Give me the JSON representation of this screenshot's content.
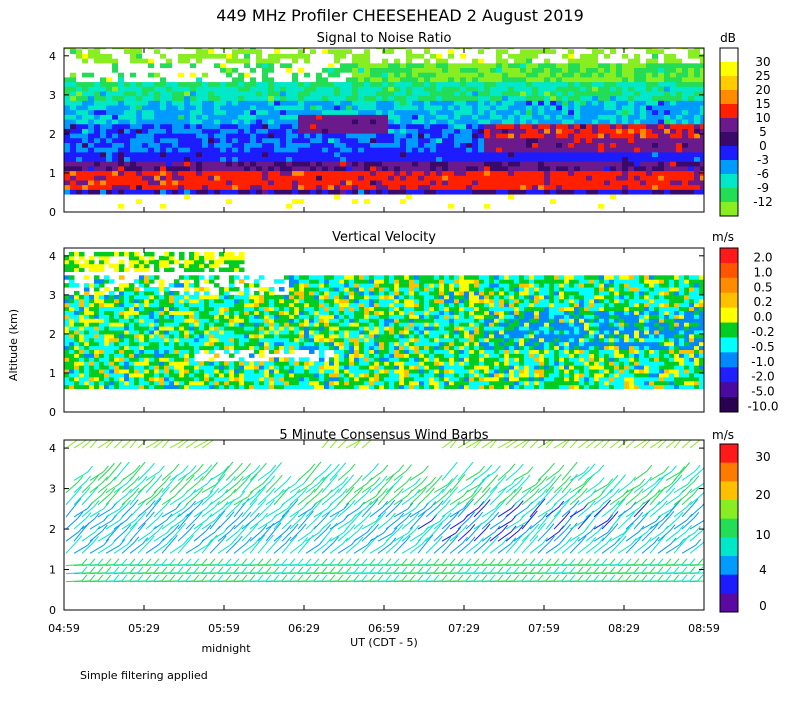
{
  "figure": {
    "title": "449 MHz Profiler CHEESEHEAD  2 August 2019",
    "ylabel": "Altitude (km)",
    "xlabel": "UT  (CDT - 5)",
    "midnight_label": "midnight",
    "footnote": "Simple filtering applied",
    "x_ticks": [
      "04:59",
      "05:29",
      "05:59",
      "06:29",
      "06:59",
      "07:29",
      "07:59",
      "08:29",
      "08:59"
    ],
    "y_ticks": [
      "0",
      "1",
      "2",
      "3",
      "4"
    ]
  },
  "chart_data": [
    {
      "type": "heatmap",
      "title": "Signal to Noise Ratio",
      "unit": "dB",
      "x_range": [
        "04:59",
        "08:59"
      ],
      "ylim": [
        0,
        4.2
      ],
      "colorbar_labels": [
        "30",
        "25",
        "20",
        "15",
        "10",
        "5",
        "0",
        "-3",
        "-6",
        "-9",
        "-12"
      ],
      "colorbar_colors": [
        "#ffffff",
        "#ffff00",
        "#ffcc00",
        "#ff8c00",
        "#ff2000",
        "#6a1a8a",
        "#3a0a6a",
        "#1c1cff",
        "#009bff",
        "#00e8c8",
        "#22dd55",
        "#88ee22"
      ],
      "bands": [
        {
          "altitude_km": 0.25,
          "level": "0"
        },
        {
          "altitude_km": 0.75,
          "level": "10"
        },
        {
          "altitude_km": 1.05,
          "level": "5"
        },
        {
          "altitude_km": 1.4,
          "level": "-3"
        },
        {
          "altitude_km": 1.9,
          "level": "-3"
        },
        {
          "altitude_km": 2.1,
          "level": "10"
        },
        {
          "altitude_km": 2.6,
          "level": "-6"
        },
        {
          "altitude_km": 3.0,
          "level": "-9"
        },
        {
          "altitude_km": 3.5,
          "level": "30"
        },
        {
          "altitude_km": 4.0,
          "level": "-12"
        }
      ]
    },
    {
      "type": "heatmap",
      "title": "Vertical Velocity",
      "unit": "m/s",
      "x_range": [
        "04:59",
        "08:59"
      ],
      "ylim": [
        0,
        4.2
      ],
      "colorbar_labels": [
        "2.0",
        "1.0",
        "0.5",
        "0.2",
        "0.0",
        "-0.2",
        "-0.5",
        "-1.0",
        "-2.0",
        "-5.0",
        "-10.0"
      ],
      "colorbar_colors": [
        "#ff1a1a",
        "#ff5500",
        "#ff8c00",
        "#ffc000",
        "#ffff00",
        "#00cc22",
        "#00ffff",
        "#0088ff",
        "#2020ff",
        "#4a0aa0",
        "#2a0050"
      ],
      "coverage_km": [
        0.6,
        3.4
      ]
    },
    {
      "type": "scatter",
      "title": "5 Minute Consensus Wind Barbs",
      "unit": "m/s",
      "x_range": [
        "04:59",
        "08:59"
      ],
      "ylim": [
        0,
        4.2
      ],
      "colorbar_labels": [
        "30",
        "20",
        "10",
        "4",
        "0"
      ],
      "colorbar_colors": [
        "#ff1a1a",
        "#ff7a00",
        "#ffc000",
        "#88ee22",
        "#22dd55",
        "#00e8c8",
        "#009bff",
        "#1c1cff",
        "#5a0aa0"
      ],
      "gate_altitudes_km": [
        0.7,
        0.9,
        1.1,
        1.4,
        1.7,
        2.0,
        2.3,
        2.6,
        2.9,
        3.2,
        4.0
      ]
    }
  ]
}
